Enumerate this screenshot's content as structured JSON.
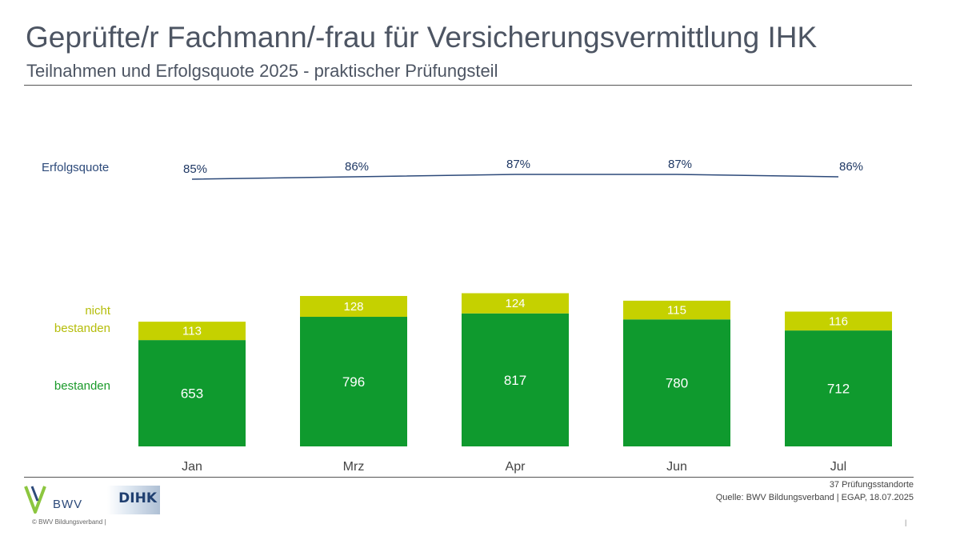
{
  "header": {
    "title": "Geprüfte/r Fachmann/-frau für Versicherungsvermittlung IHK",
    "subtitle": "Teilnahmen und Erfolgsquote 2025 - praktischer Prüfungsteil"
  },
  "legend": {
    "rate": "Erfolgsquote",
    "fail_line1": "nicht",
    "fail_line2": "bestanden",
    "ok": "bestanden"
  },
  "footer": {
    "locations": "37 Prüfungsstandorte",
    "source": "Quelle: BWV Bildungsverband | EGAP, 18.07.2025",
    "copyright": "© BWV Bildungsverband |",
    "separator": "|",
    "bwv_logo_text": "BWV",
    "dihk_logo_text": "DIHK"
  },
  "colors": {
    "passed": "#0f9a2e",
    "failed": "#c5d100",
    "rate_line": "#2d4a7a"
  },
  "chart_data": {
    "type": "bar",
    "stacked": true,
    "categories": [
      "Jan",
      "Mrz",
      "Apr",
      "Jun",
      "Jul"
    ],
    "series": [
      {
        "name": "bestanden",
        "values": [
          653,
          796,
          817,
          780,
          712
        ]
      },
      {
        "name": "nicht bestanden",
        "values": [
          113,
          128,
          124,
          115,
          116
        ]
      }
    ],
    "rate": {
      "name": "Erfolgsquote",
      "values": [
        85,
        86,
        87,
        87,
        86
      ],
      "labels": [
        "85%",
        "86%",
        "87%",
        "87%",
        "86%"
      ]
    }
  }
}
